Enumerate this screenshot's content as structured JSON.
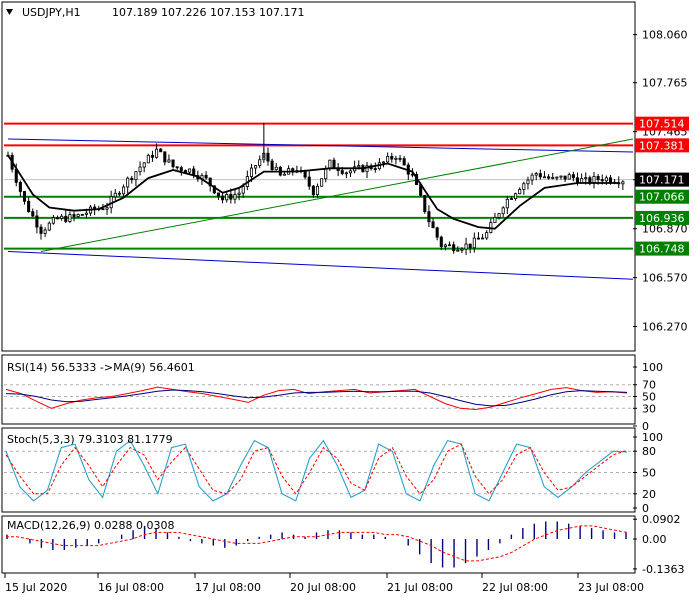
{
  "colors": {
    "up_candle": "#ffffff",
    "down_candle": "#000000",
    "resistance": "#ff0000",
    "support": "#008000",
    "trend_channel": "#0000c8",
    "trend_up": "#008000",
    "price_tag": "#000000",
    "ma": "#000000",
    "rsi": "#ff0000",
    "rsi_ma": "#000080",
    "stoch_main": "#2aa0c8",
    "stoch_signal": "#ff0000",
    "macd_hist": "#000080",
    "macd_signal": "#ff0000"
  },
  "chart_data": [
    {
      "panel": "price",
      "type": "candlestick",
      "header": {
        "symbol": "USDJPY,H1",
        "ohlc": "107.189 107.226 107.153 107.171"
      },
      "ylim": [
        106.12,
        108.26
      ],
      "yticks": [
        "108.060",
        "107.765",
        "107.465",
        "107.170",
        "106.870",
        "106.570",
        "106.270"
      ],
      "x_labels": [
        "15 Jul 2020",
        "16 Jul 08:00",
        "17 Jul 08:00",
        "20 Jul 08:00",
        "21 Jul 08:00",
        "22 Jul 08:00",
        "23 Jul 08:00"
      ],
      "close_path": [
        [
          0,
          107.32
        ],
        [
          4,
          107.03
        ],
        [
          8,
          106.86
        ],
        [
          12,
          106.93
        ],
        [
          16,
          106.94
        ],
        [
          20,
          106.98
        ],
        [
          24,
          107.01
        ],
        [
          28,
          107.14
        ],
        [
          32,
          107.25
        ],
        [
          36,
          107.35
        ],
        [
          40,
          107.25
        ],
        [
          44,
          107.23
        ],
        [
          48,
          107.17
        ],
        [
          52,
          107.05
        ],
        [
          56,
          107.09
        ],
        [
          60,
          107.26
        ],
        [
          62,
          107.32
        ],
        [
          66,
          107.19
        ],
        [
          70,
          107.24
        ],
        [
          74,
          107.1
        ],
        [
          78,
          107.27
        ],
        [
          82,
          107.22
        ],
        [
          86,
          107.24
        ],
        [
          90,
          107.26
        ],
        [
          94,
          107.32
        ],
        [
          98,
          107.19
        ],
        [
          102,
          106.92
        ],
        [
          105,
          106.77
        ],
        [
          108,
          106.76
        ],
        [
          112,
          106.77
        ],
        [
          116,
          106.84
        ],
        [
          120,
          107.02
        ],
        [
          124,
          107.13
        ],
        [
          128,
          107.21
        ],
        [
          132,
          107.17
        ],
        [
          136,
          107.19
        ],
        [
          140,
          107.16
        ],
        [
          144,
          107.18
        ],
        [
          148,
          107.17
        ]
      ],
      "ma_path": [
        [
          0,
          107.32
        ],
        [
          6,
          107.08
        ],
        [
          10,
          107.0
        ],
        [
          16,
          106.98
        ],
        [
          22,
          106.99
        ],
        [
          28,
          107.06
        ],
        [
          34,
          107.18
        ],
        [
          40,
          107.23
        ],
        [
          46,
          107.19
        ],
        [
          52,
          107.09
        ],
        [
          56,
          107.12
        ],
        [
          62,
          107.22
        ],
        [
          70,
          107.22
        ],
        [
          78,
          107.24
        ],
        [
          86,
          107.24
        ],
        [
          92,
          107.27
        ],
        [
          98,
          107.22
        ],
        [
          104,
          106.99
        ],
        [
          108,
          106.93
        ],
        [
          114,
          106.88
        ],
        [
          118,
          106.87
        ],
        [
          124,
          107.01
        ],
        [
          130,
          107.12
        ],
        [
          138,
          107.15
        ],
        [
          148,
          107.15
        ]
      ],
      "price_levels": [
        {
          "label": "107.514",
          "value": 107.514,
          "role": "resistance"
        },
        {
          "label": "107.381",
          "value": 107.381,
          "role": "resistance"
        },
        {
          "label": "107.066",
          "value": 107.066,
          "role": "support"
        },
        {
          "label": "106.936",
          "value": 106.936,
          "role": "support"
        },
        {
          "label": "106.748",
          "value": 106.748,
          "role": "support"
        }
      ],
      "current_price": {
        "label": "107.171",
        "value": 107.171
      },
      "trend_lines": [
        {
          "role": "channel-top",
          "from": [
            0,
            107.42
          ],
          "to": [
            150,
            107.34
          ]
        },
        {
          "role": "channel-bottom",
          "from": [
            0,
            106.73
          ],
          "to": [
            150,
            106.56
          ]
        },
        {
          "role": "uptrend",
          "from": [
            8,
            106.73
          ],
          "to": [
            150,
            107.42
          ]
        }
      ]
    },
    {
      "panel": "rsi",
      "type": "line",
      "header": "RSI(14) 56.5333  ->MA(9) 56.4601",
      "ylim": [
        0,
        100
      ],
      "yticks": [
        "100",
        "70",
        "50",
        "30",
        "0"
      ],
      "series": [
        {
          "values": [
            62,
            55,
            42,
            30,
            38,
            44,
            48,
            50,
            55,
            60,
            66,
            62,
            58,
            55,
            50,
            45,
            40,
            52,
            60,
            62,
            55,
            58,
            60,
            62,
            56,
            58,
            60,
            62,
            50,
            38,
            30,
            28,
            32,
            40,
            48,
            55,
            62,
            65,
            60,
            57,
            58,
            56
          ]
        },
        {
          "values": [
            55,
            54,
            50,
            44,
            41,
            42,
            45,
            48,
            51,
            55,
            59,
            61,
            60,
            58,
            55,
            51,
            48,
            49,
            52,
            56,
            57,
            57,
            58,
            59,
            58,
            58,
            59,
            59,
            56,
            50,
            43,
            37,
            34,
            35,
            40,
            46,
            53,
            58,
            60,
            59,
            58,
            57
          ]
        }
      ]
    },
    {
      "panel": "stoch",
      "type": "line",
      "header": "Stoch(5,3,3) 79.3103 81.1779",
      "ylim": [
        0,
        100
      ],
      "yticks": [
        "100",
        "80",
        "50",
        "20",
        "0"
      ],
      "series": [
        {
          "values": [
            80,
            30,
            10,
            25,
            85,
            90,
            40,
            15,
            80,
            95,
            60,
            20,
            85,
            90,
            30,
            10,
            20,
            60,
            95,
            85,
            20,
            10,
            70,
            95,
            60,
            15,
            25,
            90,
            80,
            20,
            10,
            60,
            95,
            90,
            20,
            10,
            50,
            90,
            85,
            30,
            15,
            30,
            50,
            65,
            80,
            79
          ]
        },
        {
          "values": [
            75,
            45,
            20,
            20,
            60,
            85,
            60,
            30,
            60,
            85,
            75,
            40,
            65,
            85,
            55,
            25,
            20,
            40,
            80,
            85,
            45,
            20,
            50,
            85,
            70,
            35,
            25,
            70,
            85,
            45,
            20,
            40,
            80,
            90,
            45,
            20,
            40,
            75,
            85,
            50,
            25,
            30,
            45,
            60,
            75,
            81
          ]
        }
      ]
    },
    {
      "panel": "macd",
      "type": "bar",
      "header": "MACD(12,26,9) 0.0288 0.0308",
      "ylim": [
        -0.155,
        0.105
      ],
      "yticks": [
        "0.0902",
        "0.00",
        "-0.1363"
      ],
      "histogram": [
        0.02,
        0.0,
        -0.02,
        -0.04,
        -0.05,
        -0.05,
        -0.04,
        -0.03,
        -0.02,
        0.0,
        0.02,
        0.04,
        0.06,
        0.05,
        0.03,
        0.01,
        -0.01,
        -0.02,
        -0.03,
        -0.04,
        -0.03,
        -0.01,
        0.01,
        0.02,
        0.03,
        0.02,
        0.01,
        0.03,
        0.04,
        0.04,
        0.03,
        0.02,
        0.02,
        0.01,
        0.0,
        -0.03,
        -0.07,
        -0.11,
        -0.13,
        -0.13,
        -0.11,
        -0.08,
        -0.05,
        -0.02,
        0.02,
        0.05,
        0.07,
        0.08,
        0.08,
        0.07,
        0.06,
        0.05,
        0.04,
        0.03,
        0.03
      ],
      "signal": [
        0.01,
        0.01,
        0.0,
        -0.01,
        -0.02,
        -0.03,
        -0.03,
        -0.03,
        -0.03,
        -0.02,
        -0.01,
        0.0,
        0.02,
        0.03,
        0.03,
        0.03,
        0.02,
        0.01,
        0.0,
        -0.01,
        -0.02,
        -0.02,
        -0.02,
        -0.01,
        0.0,
        0.01,
        0.01,
        0.01,
        0.02,
        0.03,
        0.03,
        0.03,
        0.03,
        0.02,
        0.02,
        0.01,
        -0.01,
        -0.03,
        -0.06,
        -0.08,
        -0.1,
        -0.1,
        -0.09,
        -0.08,
        -0.06,
        -0.03,
        0.0,
        0.02,
        0.04,
        0.05,
        0.06,
        0.06,
        0.05,
        0.04,
        0.03
      ]
    }
  ]
}
